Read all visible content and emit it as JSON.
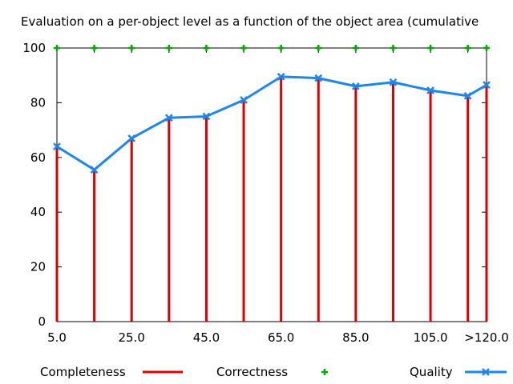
{
  "chart_data": {
    "type": "line",
    "title": "Evaluation on a per-object level as a function of the object area (cumulative",
    "x": [
      5,
      15,
      25,
      35,
      45,
      55,
      65,
      75,
      85,
      95,
      105,
      115,
      120
    ],
    "xticks": [
      "5.0",
      "25.0",
      "45.0",
      "65.0",
      "85.0",
      "105.0",
      ">120.0"
    ],
    "yticks": [
      "0",
      "20",
      "40",
      "60",
      "80",
      "100"
    ],
    "xlim": [
      5,
      120
    ],
    "ylim": [
      0,
      100
    ],
    "grid": false,
    "legend_position": "bottom",
    "series": [
      {
        "name": "Completeness",
        "style": "impulses",
        "color": "#dd0000",
        "values": [
          64,
          55.5,
          67,
          74.5,
          75,
          81,
          89.5,
          89,
          86,
          87.5,
          84.5,
          82.5,
          86.5
        ]
      },
      {
        "name": "Correctness",
        "style": "points",
        "color": "#00aa00",
        "values": [
          100,
          100,
          100,
          100,
          100,
          100,
          100,
          100,
          100,
          100,
          100,
          100,
          100
        ]
      },
      {
        "name": "Quality",
        "style": "linespoints",
        "color": "#1d86f0",
        "values": [
          64,
          55.5,
          67,
          74.5,
          75,
          81,
          89.5,
          89,
          86,
          87.5,
          84.5,
          82.5,
          86.5
        ]
      }
    ]
  }
}
